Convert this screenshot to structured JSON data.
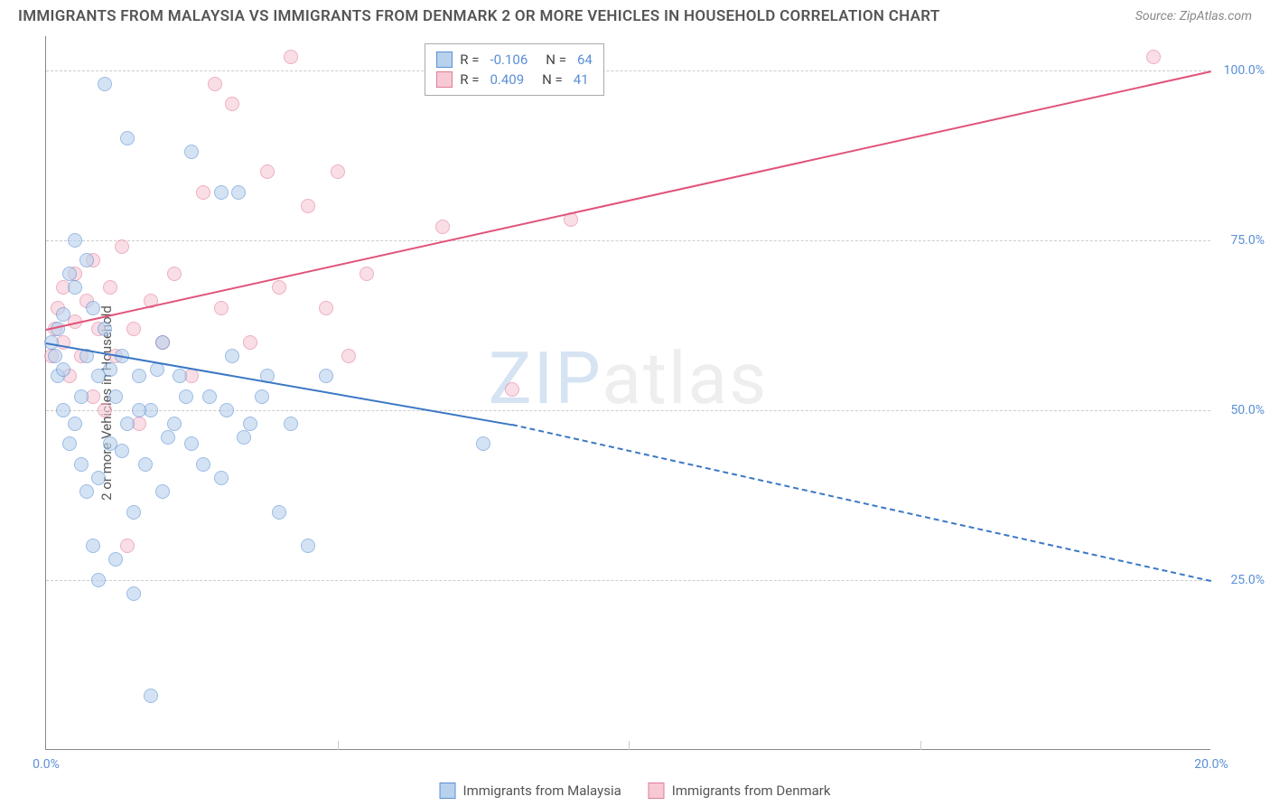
{
  "title": "IMMIGRANTS FROM MALAYSIA VS IMMIGRANTS FROM DENMARK 2 OR MORE VEHICLES IN HOUSEHOLD CORRELATION CHART",
  "source": "Source: ZipAtlas.com",
  "watermark_zip": "ZIP",
  "watermark_atlas": "atlas",
  "chart": {
    "type": "scatter",
    "y_label": "2 or more Vehicles in Household",
    "xlim": [
      0,
      20
    ],
    "ylim": [
      0,
      105
    ],
    "x_ticks": [
      0,
      20
    ],
    "x_tick_labels": [
      "0.0%",
      "20.0%"
    ],
    "y_ticks": [
      25,
      50,
      75,
      100
    ],
    "y_tick_labels": [
      "25.0%",
      "50.0%",
      "75.0%",
      "100.0%"
    ],
    "x_minor_ticks": [
      5,
      10,
      15
    ],
    "background_color": "#ffffff",
    "grid_color": "#cccccc",
    "axis_color": "#888888",
    "label_color": "#5b8fd6",
    "text_color": "#555555"
  },
  "series": {
    "malaysia": {
      "label": "Immigrants from Malaysia",
      "color_fill": "#b8d1ec",
      "color_stroke": "#5b8fd6",
      "r_value": "-0.106",
      "n_value": "64",
      "trend": {
        "x1": 0,
        "y1": 60,
        "x2": 8,
        "y2": 48,
        "solid": true,
        "color": "#3b78c4"
      },
      "trend_ext": {
        "x1": 8,
        "y1": 48,
        "x2": 20,
        "y2": 25,
        "color": "#3b78c4"
      },
      "points": [
        [
          0.1,
          60
        ],
        [
          0.15,
          58
        ],
        [
          0.2,
          55
        ],
        [
          0.2,
          62
        ],
        [
          0.3,
          56
        ],
        [
          0.3,
          50
        ],
        [
          0.4,
          70
        ],
        [
          0.4,
          45
        ],
        [
          0.5,
          75
        ],
        [
          0.5,
          48
        ],
        [
          0.6,
          52
        ],
        [
          0.6,
          42
        ],
        [
          0.7,
          58
        ],
        [
          0.7,
          38
        ],
        [
          0.8,
          65
        ],
        [
          0.8,
          30
        ],
        [
          0.9,
          55
        ],
        [
          0.9,
          25
        ],
        [
          1.0,
          98
        ],
        [
          1.0,
          62
        ],
        [
          1.1,
          45
        ],
        [
          1.2,
          52
        ],
        [
          1.2,
          28
        ],
        [
          1.3,
          58
        ],
        [
          1.4,
          90
        ],
        [
          1.4,
          48
        ],
        [
          1.5,
          35
        ],
        [
          1.5,
          23
        ],
        [
          1.6,
          55
        ],
        [
          1.7,
          42
        ],
        [
          1.8,
          50
        ],
        [
          1.8,
          8
        ],
        [
          2.0,
          60
        ],
        [
          2.0,
          38
        ],
        [
          2.2,
          48
        ],
        [
          2.3,
          55
        ],
        [
          2.5,
          88
        ],
        [
          2.5,
          45
        ],
        [
          2.8,
          52
        ],
        [
          3.0,
          82
        ],
        [
          3.0,
          40
        ],
        [
          3.2,
          58
        ],
        [
          3.3,
          82
        ],
        [
          3.5,
          48
        ],
        [
          3.8,
          55
        ],
        [
          4.0,
          35
        ],
        [
          4.2,
          48
        ],
        [
          4.5,
          30
        ],
        [
          4.8,
          55
        ],
        [
          7.5,
          45
        ],
        [
          0.3,
          64
        ],
        [
          0.5,
          68
        ],
        [
          0.7,
          72
        ],
        [
          0.9,
          40
        ],
        [
          1.1,
          56
        ],
        [
          1.3,
          44
        ],
        [
          1.6,
          50
        ],
        [
          1.9,
          56
        ],
        [
          2.1,
          46
        ],
        [
          2.4,
          52
        ],
        [
          2.7,
          42
        ],
        [
          3.1,
          50
        ],
        [
          3.4,
          46
        ],
        [
          3.7,
          52
        ]
      ]
    },
    "denmark": {
      "label": "Immigrants from Denmark",
      "color_fill": "#f6c9d4",
      "color_stroke": "#e37b9a",
      "r_value": "0.409",
      "n_value": "41",
      "trend": {
        "x1": 0,
        "y1": 62,
        "x2": 20,
        "y2": 100,
        "solid": true,
        "color": "#e1537a"
      },
      "points": [
        [
          0.1,
          58
        ],
        [
          0.15,
          62
        ],
        [
          0.2,
          65
        ],
        [
          0.3,
          60
        ],
        [
          0.3,
          68
        ],
        [
          0.4,
          55
        ],
        [
          0.5,
          63
        ],
        [
          0.5,
          70
        ],
        [
          0.6,
          58
        ],
        [
          0.7,
          66
        ],
        [
          0.8,
          52
        ],
        [
          0.8,
          72
        ],
        [
          0.9,
          62
        ],
        [
          1.0,
          50
        ],
        [
          1.1,
          68
        ],
        [
          1.2,
          58
        ],
        [
          1.3,
          74
        ],
        [
          1.5,
          62
        ],
        [
          1.6,
          48
        ],
        [
          1.8,
          66
        ],
        [
          2.0,
          60
        ],
        [
          2.2,
          70
        ],
        [
          2.5,
          55
        ],
        [
          2.7,
          82
        ],
        [
          2.9,
          98
        ],
        [
          3.0,
          65
        ],
        [
          3.2,
          95
        ],
        [
          3.5,
          60
        ],
        [
          3.8,
          85
        ],
        [
          4.0,
          68
        ],
        [
          4.2,
          102
        ],
        [
          4.5,
          80
        ],
        [
          4.8,
          65
        ],
        [
          5.0,
          85
        ],
        [
          5.2,
          58
        ],
        [
          5.5,
          70
        ],
        [
          6.8,
          77
        ],
        [
          8.0,
          53
        ],
        [
          9.0,
          78
        ],
        [
          19.0,
          102
        ],
        [
          1.4,
          30
        ]
      ]
    }
  },
  "legend_labels": {
    "r_prefix": "R =",
    "n_prefix": "N ="
  }
}
